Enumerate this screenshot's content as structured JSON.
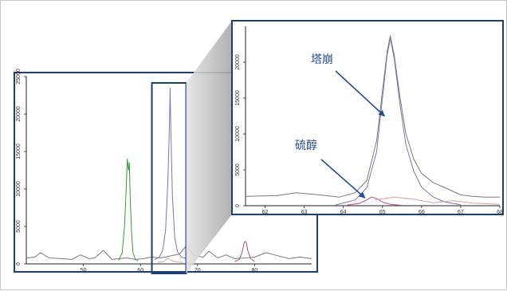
{
  "chart_data": [
    {
      "id": "overview",
      "type": "line",
      "title": "",
      "xlabel": "",
      "ylabel": "",
      "xlim": [
        40,
        90
      ],
      "ylim": [
        0,
        25000
      ],
      "x_ticks": [
        50,
        60,
        70,
        80
      ],
      "y_ticks": [
        0,
        5000,
        10000,
        15000,
        20000,
        25000
      ],
      "grid": false,
      "legend": "none",
      "highlight_window": [
        62,
        68
      ],
      "series": [
        {
          "color": "#7a7a7a",
          "x": [
            40,
            41.5,
            42.5,
            44,
            46,
            48,
            49.5,
            51,
            52,
            53.5,
            55,
            56.5,
            57.5,
            59.2,
            60.5,
            62,
            63.5,
            66.8,
            68,
            69.5,
            71,
            72,
            73.5,
            75,
            76.5,
            78.5,
            80,
            82,
            84,
            86,
            88,
            90
          ],
          "y": [
            800,
            900,
            1500,
            800,
            700,
            600,
            1200,
            700,
            800,
            1800,
            600,
            700,
            800,
            600,
            700,
            900,
            800,
            1300,
            2400,
            1100,
            900,
            1700,
            800,
            1200,
            700,
            800,
            900,
            1500,
            1100,
            700,
            900,
            700
          ]
        },
        {
          "color": "#3a9a3a",
          "x": [
            56.2,
            56.8,
            57.2,
            57.5,
            57.7,
            57.9,
            58.05,
            58.2,
            58.45,
            58.7,
            59.1,
            59.6
          ],
          "y": [
            500,
            1500,
            5000,
            10000,
            14000,
            12500,
            13500,
            9000,
            4000,
            1500,
            600,
            400
          ]
        },
        {
          "color": "#7d75b5",
          "x": [
            62.5,
            63.3,
            63.9,
            64.4,
            64.8,
            65.1,
            65.2,
            65.3,
            65.6,
            66.0,
            66.5,
            67.2,
            68.0
          ],
          "y": [
            600,
            900,
            1800,
            4500,
            11000,
            19000,
            23500,
            19000,
            9000,
            3500,
            1600,
            900,
            700
          ]
        },
        {
          "color": "#b0507a",
          "x": [
            76.5,
            77.3,
            77.8,
            78.2,
            78.5,
            78.8,
            79.3,
            80.0
          ],
          "y": [
            300,
            600,
            1500,
            2900,
            3000,
            1800,
            700,
            300
          ]
        },
        {
          "color": "#d6a3a3",
          "x": [
            63.0,
            64.0,
            64.5,
            64.8,
            65.1,
            65.6,
            66.5,
            67.5
          ],
          "y": [
            200,
            300,
            600,
            800,
            600,
            400,
            250,
            200
          ]
        }
      ]
    },
    {
      "id": "zoom",
      "type": "line",
      "title": "",
      "xlabel": "",
      "ylabel": "",
      "xlim": [
        61.5,
        68
      ],
      "ylim": [
        0,
        25000
      ],
      "x_ticks": [
        62,
        63,
        64,
        65,
        66,
        67,
        68
      ],
      "y_ticks": [
        0,
        5000,
        10000,
        15000,
        20000
      ],
      "grid": false,
      "legend": "none",
      "series": [
        {
          "color": "#7a7a7a",
          "x": [
            61.5,
            62.3,
            62.8,
            63.4,
            63.9,
            64.3,
            64.6,
            64.85,
            65.0,
            65.12,
            65.2,
            65.3,
            65.45,
            65.6,
            65.8,
            66.0,
            66.3,
            66.6,
            67.0,
            67.3,
            67.6,
            68.0
          ],
          "y": [
            1300,
            1400,
            1800,
            1500,
            1200,
            1800,
            3500,
            9000,
            16000,
            21500,
            23700,
            21000,
            15000,
            10000,
            6500,
            4500,
            3200,
            2500,
            1500,
            1300,
            1200,
            1200
          ]
        },
        {
          "color": "#7d75b5",
          "x": [
            63.8,
            64.3,
            64.6,
            64.85,
            65.0,
            65.12,
            65.2,
            65.3,
            65.45,
            65.6,
            65.8,
            66.0,
            66.3,
            66.6,
            67.0
          ],
          "y": [
            100,
            800,
            2500,
            7500,
            15000,
            21000,
            23300,
            20500,
            14000,
            8500,
            4800,
            2600,
            1200,
            500,
            150
          ]
        },
        {
          "color": "#b0507a",
          "x": [
            64.1,
            64.4,
            64.6,
            64.72,
            64.85,
            65.0,
            65.2,
            65.5
          ],
          "y": [
            100,
            300,
            800,
            1200,
            1000,
            500,
            200,
            50
          ]
        },
        {
          "color": "#d6a3a3",
          "x": [
            64.8,
            65.3,
            65.8,
            66.3,
            66.8,
            67.3,
            68.0
          ],
          "y": [
            800,
            1200,
            900,
            400,
            700,
            350,
            200
          ]
        }
      ],
      "annotations": [
        {
          "text": "塔崩",
          "target_x": 65.05,
          "target_y": 12500
        },
        {
          "text": "硫醇",
          "target_x": 64.55,
          "target_y": 1100
        }
      ]
    }
  ]
}
